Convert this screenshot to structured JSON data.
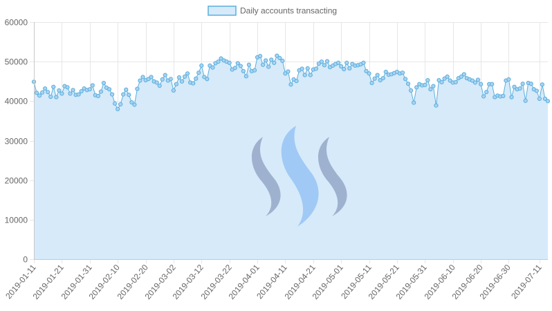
{
  "colors": {
    "line": "#5aaedc",
    "area": "#d6eafa",
    "point_fill": "#a9d3f2",
    "watermark_dark": "#8c9ec0",
    "watermark_light": "#8fbff5"
  },
  "watermark": {
    "icon": "steem-logo-icon"
  },
  "chart_data": {
    "type": "line",
    "title": "",
    "xlabel": "",
    "ylabel": "",
    "ylim": [
      0,
      60000
    ],
    "y_ticks": [
      "0",
      "10000",
      "20000",
      "30000",
      "40000",
      "50000",
      "60000"
    ],
    "x_start": "2019-01-11",
    "x_ticks": [
      "2019-01-11",
      "2019-01-21",
      "2019-01-31",
      "2019-02-10",
      "2019-02-20",
      "2019-03-02",
      "2019-03-12",
      "2019-03-22",
      "2019-04-01",
      "2019-04-11",
      "2019-04-21",
      "2019-05-01",
      "2019-05-11",
      "2019-05-21",
      "2019-05-31",
      "2019-06-10",
      "2019-06-20",
      "2019-06-30",
      "2019-07-11"
    ],
    "legend": {
      "position": "top-center"
    },
    "grid": true,
    "series": [
      {
        "name": "Daily accounts transacting",
        "values": [
          44900,
          42100,
          41400,
          42200,
          43200,
          42300,
          41100,
          43600,
          41000,
          42700,
          41900,
          43800,
          43500,
          41900,
          42800,
          41600,
          41700,
          42500,
          43200,
          42800,
          43000,
          44000,
          41500,
          41300,
          42400,
          44600,
          43400,
          43000,
          41700,
          39400,
          38000,
          39200,
          41700,
          42900,
          41600,
          39700,
          39100,
          43100,
          45200,
          46100,
          45300,
          45600,
          46100,
          45000,
          44700,
          43900,
          45500,
          46600,
          45200,
          45600,
          42700,
          44300,
          46000,
          45000,
          46200,
          47000,
          44700,
          44500,
          45700,
          47200,
          49000,
          46100,
          45600,
          49000,
          48500,
          49600,
          50000,
          50800,
          50300,
          50000,
          49700,
          48000,
          48400,
          49600,
          48900,
          47600,
          46300,
          49200,
          47600,
          47800,
          51100,
          51400,
          49200,
          50300,
          48700,
          50500,
          49700,
          51500,
          50900,
          50200,
          47000,
          47500,
          44200,
          45500,
          45100,
          47800,
          48200,
          46600,
          48300,
          46600,
          48000,
          48200,
          49500,
          50000,
          49100,
          50100,
          48600,
          49000,
          49400,
          49700,
          48800,
          48100,
          49700,
          48300,
          49400,
          49000,
          49100,
          49300,
          49700,
          47600,
          47000,
          44600,
          45700,
          46600,
          45300,
          45800,
          47400,
          46700,
          46800,
          47100,
          47400,
          47000,
          47200,
          45600,
          44400,
          42700,
          39600,
          43500,
          44300,
          44000,
          44100,
          45300,
          43000,
          43800,
          38900,
          45300,
          44800,
          45700,
          46200,
          45200,
          44700,
          44800,
          45800,
          46200,
          46800,
          45800,
          45500,
          45200,
          44700,
          45400,
          44300,
          41200,
          42300,
          44300,
          44300,
          41000,
          41400,
          41200,
          41300,
          45200,
          45500,
          41000,
          43600,
          43000,
          43200,
          44400,
          40100,
          44600,
          44400,
          43000,
          42600,
          40600,
          44200,
          40600,
          40000
        ]
      }
    ]
  }
}
